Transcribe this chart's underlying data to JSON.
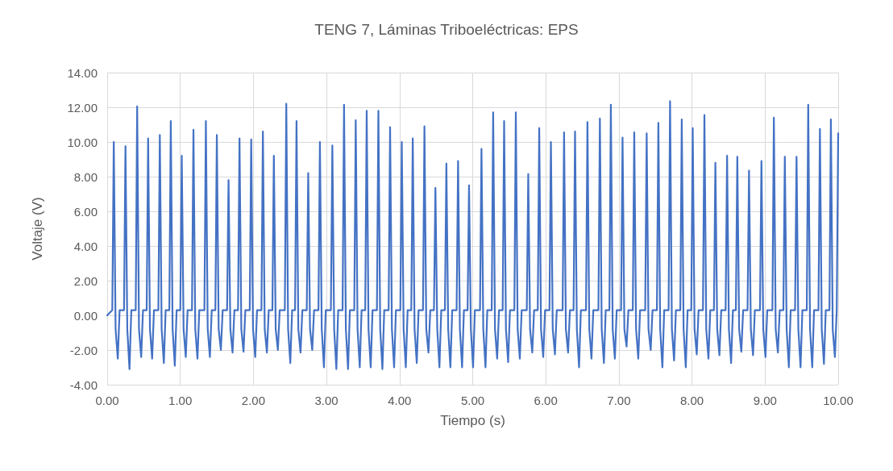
{
  "chart_data": {
    "type": "line",
    "title": "TENG 7, Láminas Triboeléctricas: EPS",
    "xlabel": "Tiempo (s)",
    "ylabel": "Voltaje (V)",
    "grid": true,
    "xlim": [
      0,
      10
    ],
    "ylim": [
      -4,
      14
    ],
    "xticks": [
      {
        "value": 0,
        "label": "0.00"
      },
      {
        "value": 1,
        "label": "1.00"
      },
      {
        "value": 2,
        "label": "2.00"
      },
      {
        "value": 3,
        "label": "3.00"
      },
      {
        "value": 4,
        "label": "4.00"
      },
      {
        "value": 5,
        "label": "5.00"
      },
      {
        "value": 6,
        "label": "6.00"
      },
      {
        "value": 7,
        "label": "7.00"
      },
      {
        "value": 8,
        "label": "8.00"
      },
      {
        "value": 9,
        "label": "9.00"
      },
      {
        "value": 10,
        "label": "10.00"
      }
    ],
    "yticks": [
      {
        "value": -4,
        "label": "-4.00"
      },
      {
        "value": -2,
        "label": "-2.00"
      },
      {
        "value": 0,
        "label": "0.00"
      },
      {
        "value": 2,
        "label": "2.00"
      },
      {
        "value": 4,
        "label": "4.00"
      },
      {
        "value": 6,
        "label": "6.00"
      },
      {
        "value": 8,
        "label": "8.00"
      },
      {
        "value": 10,
        "label": "10.00"
      },
      {
        "value": 12,
        "label": "12.00"
      },
      {
        "value": 14,
        "label": "14.00"
      }
    ],
    "series": [
      {
        "color": "#4472c4",
        "x": [
          0,
          0.07,
          0.09,
          0.115,
          0.145,
          0.17,
          0.23,
          0.25,
          0.275,
          0.305,
          0.33,
          0.39,
          0.41,
          0.435,
          0.465,
          0.49,
          0.54,
          0.56,
          0.585,
          0.615,
          0.64,
          0.7,
          0.72,
          0.745,
          0.775,
          0.8,
          0.85,
          0.87,
          0.895,
          0.925,
          0.95,
          1.0,
          1.02,
          1.045,
          1.075,
          1.1,
          1.16,
          1.18,
          1.205,
          1.235,
          1.26,
          1.33,
          1.35,
          1.375,
          1.405,
          1.43,
          1.48,
          1.5,
          1.525,
          1.555,
          1.58,
          1.64,
          1.66,
          1.685,
          1.715,
          1.74,
          1.79,
          1.81,
          1.835,
          1.865,
          1.89,
          1.95,
          1.97,
          1.995,
          2.025,
          2.05,
          2.11,
          2.13,
          2.155,
          2.185,
          2.21,
          2.26,
          2.28,
          2.305,
          2.335,
          2.36,
          2.43,
          2.45,
          2.475,
          2.505,
          2.53,
          2.57,
          2.59,
          2.615,
          2.645,
          2.67,
          2.73,
          2.75,
          2.775,
          2.805,
          2.83,
          2.89,
          2.91,
          2.935,
          2.965,
          2.99,
          3.06,
          3.08,
          3.105,
          3.135,
          3.16,
          3.22,
          3.24,
          3.265,
          3.295,
          3.32,
          3.38,
          3.4,
          3.425,
          3.455,
          3.48,
          3.53,
          3.55,
          3.575,
          3.605,
          3.63,
          3.69,
          3.71,
          3.735,
          3.765,
          3.79,
          3.85,
          3.87,
          3.895,
          3.925,
          3.95,
          4.01,
          4.03,
          4.055,
          4.085,
          4.11,
          4.16,
          4.18,
          4.205,
          4.235,
          4.26,
          4.32,
          4.34,
          4.365,
          4.395,
          4.42,
          4.47,
          4.49,
          4.515,
          4.545,
          4.57,
          4.62,
          4.64,
          4.665,
          4.695,
          4.72,
          4.78,
          4.8,
          4.825,
          4.855,
          4.88,
          4.93,
          4.95,
          4.975,
          5.005,
          5.03,
          5.1,
          5.12,
          5.145,
          5.175,
          5.2,
          5.26,
          5.28,
          5.305,
          5.335,
          5.36,
          5.41,
          5.43,
          5.455,
          5.485,
          5.51,
          5.57,
          5.59,
          5.615,
          5.645,
          5.67,
          5.74,
          5.76,
          5.785,
          5.815,
          5.84,
          5.89,
          5.91,
          5.935,
          5.965,
          5.99,
          6.05,
          6.07,
          6.095,
          6.125,
          6.15,
          6.23,
          6.25,
          6.275,
          6.305,
          6.33,
          6.38,
          6.4,
          6.425,
          6.455,
          6.48,
          6.55,
          6.57,
          6.595,
          6.625,
          6.65,
          6.72,
          6.74,
          6.765,
          6.795,
          6.82,
          6.87,
          6.89,
          6.915,
          6.945,
          6.97,
          7.03,
          7.05,
          7.075,
          7.105,
          7.13,
          7.19,
          7.21,
          7.235,
          7.265,
          7.29,
          7.36,
          7.38,
          7.405,
          7.435,
          7.46,
          7.52,
          7.54,
          7.565,
          7.595,
          7.62,
          7.68,
          7.7,
          7.725,
          7.755,
          7.78,
          7.84,
          7.86,
          7.885,
          7.915,
          7.94,
          7.99,
          8.01,
          8.035,
          8.065,
          8.09,
          8.15,
          8.17,
          8.195,
          8.225,
          8.25,
          8.3,
          8.32,
          8.345,
          8.375,
          8.4,
          8.46,
          8.48,
          8.505,
          8.535,
          8.56,
          8.6,
          8.62,
          8.645,
          8.675,
          8.7,
          8.76,
          8.78,
          8.805,
          8.835,
          8.86,
          8.93,
          8.95,
          8.975,
          9.005,
          9.03,
          9.1,
          9.12,
          9.145,
          9.175,
          9.2,
          9.25,
          9.27,
          9.295,
          9.325,
          9.35,
          9.41,
          9.43,
          9.455,
          9.485,
          9.51,
          9.57,
          9.59,
          9.615,
          9.645,
          9.67,
          9.73,
          9.75,
          9.775,
          9.805,
          9.83,
          9.88,
          9.9,
          9.925,
          9.955,
          9.98,
          10.0
        ],
        "values": [
          0,
          0.3,
          10.0,
          -0.8,
          -2.5,
          0.3,
          0.3,
          9.75,
          -0.8,
          -3.1,
          0.3,
          0.3,
          12.05,
          -0.8,
          -2.4,
          0.3,
          0.3,
          10.2,
          -0.8,
          -2.5,
          0.3,
          0.3,
          10.4,
          -0.8,
          -2.75,
          0.3,
          0.3,
          11.2,
          -0.8,
          -2.9,
          0.3,
          0.3,
          9.2,
          -0.8,
          -2.4,
          0.3,
          0.3,
          10.7,
          -0.8,
          -2.5,
          0.3,
          0.3,
          11.2,
          -0.8,
          -2.4,
          0.3,
          0.3,
          10.4,
          -0.8,
          -2.0,
          0.3,
          0.3,
          7.8,
          -0.8,
          -2.15,
          0.3,
          0.3,
          10.2,
          -0.8,
          -2.1,
          0.3,
          0.3,
          10.15,
          -0.8,
          -2.4,
          0.3,
          0.3,
          10.6,
          -0.8,
          -2.15,
          0.3,
          0.3,
          9.2,
          -0.8,
          -2.0,
          0.3,
          0.3,
          12.2,
          -0.8,
          -2.75,
          0.3,
          0.3,
          11.2,
          -0.8,
          -2.15,
          0.3,
          0.3,
          8.2,
          -0.8,
          -2.0,
          0.3,
          0.3,
          10.0,
          -0.8,
          -3.0,
          0.3,
          0.3,
          9.8,
          -0.8,
          -3.1,
          0.3,
          0.3,
          12.15,
          -0.8,
          -3.1,
          0.3,
          0.3,
          11.25,
          -0.8,
          -3.0,
          0.3,
          0.3,
          11.8,
          -0.8,
          -3.0,
          0.3,
          0.3,
          11.8,
          -0.8,
          -3.1,
          0.3,
          0.3,
          10.85,
          -0.8,
          -3.0,
          0.3,
          0.3,
          10.0,
          -0.8,
          -3.0,
          0.3,
          0.3,
          10.2,
          -0.8,
          -2.75,
          0.3,
          0.3,
          10.9,
          -0.8,
          -2.15,
          0.3,
          0.3,
          7.35,
          -0.8,
          -3.0,
          0.3,
          0.3,
          8.75,
          -0.8,
          -3.0,
          0.3,
          0.3,
          8.9,
          -0.8,
          -3.0,
          0.3,
          0.3,
          7.5,
          -0.8,
          -3.0,
          0.3,
          0.3,
          9.6,
          -0.8,
          -3.0,
          0.3,
          0.3,
          11.7,
          -0.8,
          -2.5,
          0.3,
          0.3,
          11.2,
          -0.8,
          -2.7,
          0.3,
          0.3,
          11.7,
          -0.8,
          -2.5,
          0.3,
          0.3,
          8.15,
          -0.8,
          -2.15,
          0.3,
          0.3,
          10.8,
          -0.8,
          -2.4,
          0.3,
          0.3,
          10.0,
          -0.8,
          -2.25,
          0.3,
          0.3,
          10.55,
          -0.8,
          -2.15,
          0.3,
          0.3,
          10.6,
          -0.8,
          -3.0,
          0.3,
          0.3,
          11.15,
          -0.8,
          -2.5,
          0.3,
          0.3,
          11.35,
          -0.8,
          -2.75,
          0.3,
          0.3,
          12.15,
          -0.8,
          -2.5,
          0.3,
          0.3,
          10.25,
          -0.8,
          -1.8,
          0.3,
          0.3,
          10.55,
          -0.8,
          -2.5,
          0.3,
          0.3,
          10.5,
          -0.8,
          -2.0,
          0.3,
          0.3,
          11.1,
          -0.8,
          -3.0,
          0.3,
          0.3,
          12.35,
          -0.8,
          -2.6,
          0.3,
          0.3,
          11.3,
          -0.8,
          -3.0,
          0.3,
          0.3,
          10.8,
          -0.8,
          -2.25,
          0.3,
          0.3,
          11.55,
          -0.8,
          -2.5,
          0.3,
          0.3,
          8.8,
          -0.8,
          -2.3,
          0.3,
          0.3,
          9.2,
          -0.8,
          -2.75,
          0.3,
          0.3,
          9.15,
          -0.8,
          -2.1,
          0.3,
          0.3,
          8.35,
          -0.8,
          -2.3,
          0.3,
          0.3,
          8.9,
          -0.8,
          -2.4,
          0.3,
          0.3,
          11.4,
          -0.8,
          -2.15,
          0.3,
          0.3,
          9.15,
          -0.8,
          -3.0,
          0.3,
          0.3,
          9.15,
          -0.8,
          -3.0,
          0.3,
          0.3,
          12.15,
          -0.8,
          -3.0,
          0.3,
          0.3,
          10.75,
          -0.8,
          -2.8,
          0.3,
          0.3,
          11.3,
          -0.8,
          -2.4,
          0.3,
          10.5
        ]
      }
    ]
  }
}
